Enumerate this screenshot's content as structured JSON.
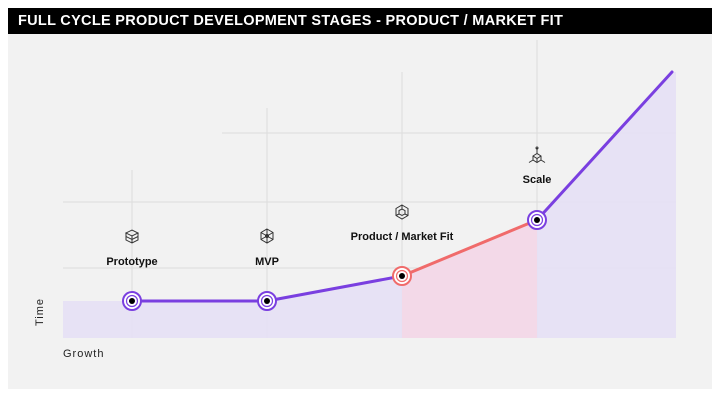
{
  "title": "FULL CYCLE PRODUCT DEVELOPMENT STAGES - PRODUCT / MARKET FIT",
  "axes": {
    "x_label": "Growth",
    "y_label": "Time"
  },
  "stages": [
    {
      "label": "Prototype",
      "icon": "cube-stack-icon"
    },
    {
      "label": "MVP",
      "icon": "cube-network-icon"
    },
    {
      "label": "Product / Market Fit",
      "icon": "cube-fit-icon",
      "highlight": true
    },
    {
      "label": "Scale",
      "icon": "cube-scale-icon"
    }
  ],
  "colors": {
    "purple": "#7a3fe0",
    "coral": "#f06b6b",
    "purple_fill": "#e6e0f5",
    "coral_fill": "#f3d9e8",
    "background": "#f2f2f2",
    "title_bg": "#000000"
  }
}
